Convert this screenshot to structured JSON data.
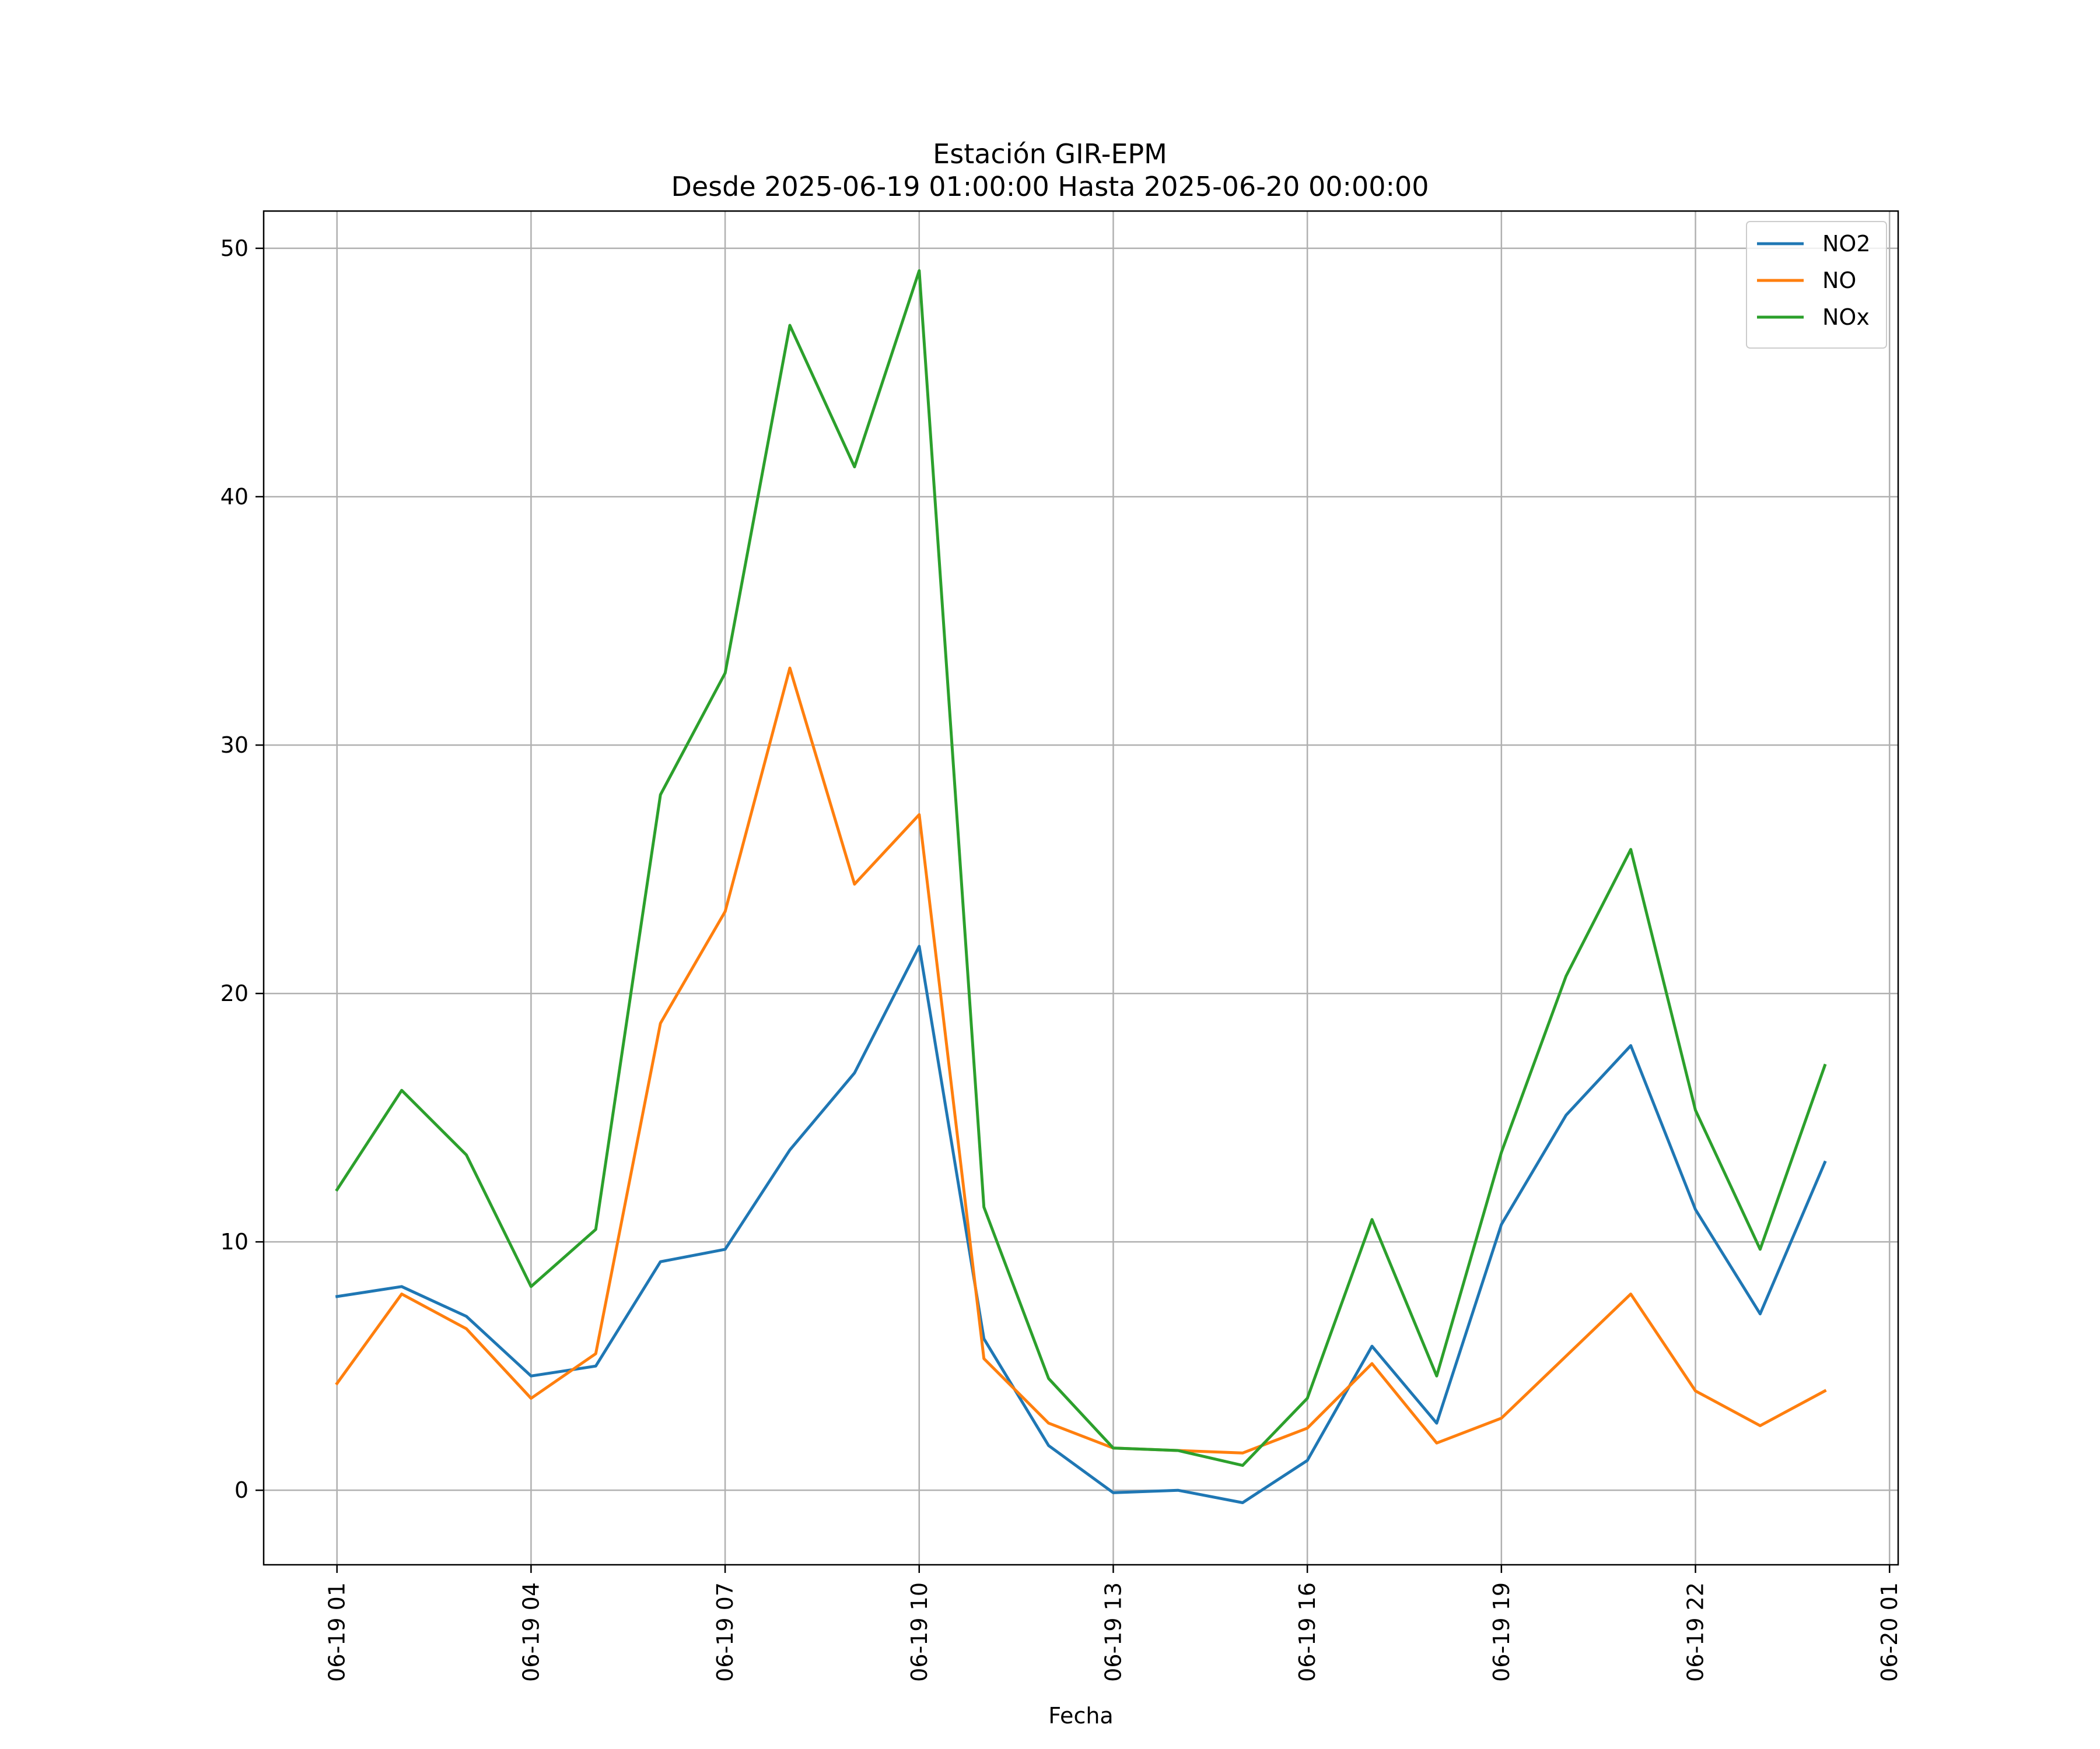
{
  "chart_data": {
    "type": "line",
    "title": "Estación GIR-EPM",
    "subtitle": "Desde 2025-06-19 01:00:00 Hasta 2025-06-20 00:00:00",
    "xlabel": "Fecha",
    "ylabel": "",
    "x": [
      "2025-06-19 01:00",
      "2025-06-19 02:00",
      "2025-06-19 03:00",
      "2025-06-19 04:00",
      "2025-06-19 05:00",
      "2025-06-19 06:00",
      "2025-06-19 07:00",
      "2025-06-19 08:00",
      "2025-06-19 09:00",
      "2025-06-19 10:00",
      "2025-06-19 11:00",
      "2025-06-19 12:00",
      "2025-06-19 13:00",
      "2025-06-19 14:00",
      "2025-06-19 15:00",
      "2025-06-19 16:00",
      "2025-06-19 17:00",
      "2025-06-19 18:00",
      "2025-06-19 19:00",
      "2025-06-19 20:00",
      "2025-06-19 21:00",
      "2025-06-19 22:00",
      "2025-06-19 23:00",
      "2025-06-20 00:00"
    ],
    "xlim": [
      "2025-06-18 23:52",
      "2025-06-20 01:08"
    ],
    "xticks": [
      "2025-06-19 01:00",
      "2025-06-19 04:00",
      "2025-06-19 07:00",
      "2025-06-19 10:00",
      "2025-06-19 13:00",
      "2025-06-19 16:00",
      "2025-06-19 19:00",
      "2025-06-19 22:00",
      "2025-06-20 01:00"
    ],
    "xtick_labels": [
      "06-19 01",
      "06-19 04",
      "06-19 07",
      "06-19 10",
      "06-19 13",
      "06-19 16",
      "06-19 19",
      "06-19 22",
      "06-20 01"
    ],
    "ylim": [
      -3,
      51.5
    ],
    "yticks": [
      0,
      10,
      20,
      30,
      40,
      50
    ],
    "ytick_labels": [
      "0",
      "10",
      "20",
      "30",
      "40",
      "50"
    ],
    "grid": true,
    "legend_position": "top-right",
    "series": [
      {
        "name": "NO2",
        "color": "#1f77b4",
        "values": [
          7.8,
          8.2,
          7.0,
          4.6,
          5.0,
          9.2,
          9.7,
          13.7,
          16.8,
          21.9,
          6.1,
          1.8,
          -0.1,
          0.0,
          -0.5,
          1.2,
          5.8,
          2.7,
          10.7,
          15.1,
          17.9,
          11.3,
          7.1,
          13.2
        ]
      },
      {
        "name": "NO",
        "color": "#ff7f0e",
        "values": [
          4.3,
          7.9,
          6.5,
          3.7,
          5.5,
          18.8,
          23.3,
          33.1,
          24.4,
          27.2,
          5.3,
          2.7,
          1.7,
          1.6,
          1.5,
          2.5,
          5.1,
          1.9,
          2.9,
          5.4,
          7.9,
          4.0,
          2.6,
          4.0
        ]
      },
      {
        "name": "NOx",
        "color": "#2ca02c",
        "values": [
          12.1,
          16.1,
          13.5,
          8.2,
          10.5,
          28.0,
          32.9,
          46.9,
          41.2,
          49.1,
          11.4,
          4.5,
          1.7,
          1.6,
          1.0,
          3.7,
          10.9,
          4.6,
          13.6,
          20.7,
          25.8,
          15.3,
          9.7,
          17.1
        ]
      }
    ]
  }
}
